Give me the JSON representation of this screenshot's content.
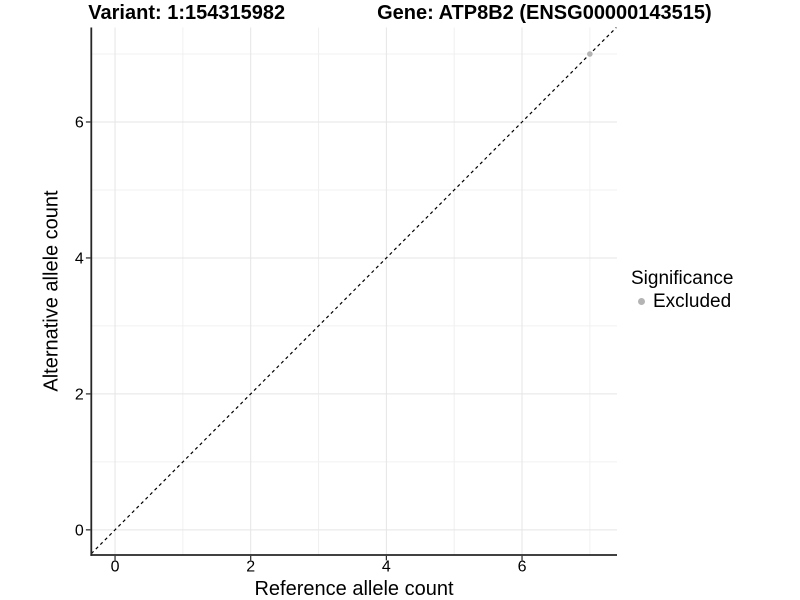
{
  "title": {
    "variant": "Variant: 1:154315982",
    "gene": "Gene: ATP8B2 (ENSG00000143515)"
  },
  "chart_data": {
    "type": "scatter",
    "title": "Variant: 1:154315982   Gene: ATP8B2 (ENSG00000143515)",
    "xlabel": "Reference allele count",
    "ylabel": "Alternative allele count",
    "xlim": [
      -0.35,
      7.4
    ],
    "ylim": [
      -0.37,
      7.39
    ],
    "x_ticks": [
      0,
      2,
      4,
      6
    ],
    "y_ticks": [
      0,
      2,
      4,
      6
    ],
    "x_minor_gridlines": [
      1,
      3,
      5,
      7
    ],
    "y_minor_gridlines": [
      1,
      3,
      5,
      7
    ],
    "grid": true,
    "reference_line": {
      "type": "identity",
      "style": "dashed",
      "color": "#000000"
    },
    "series": [
      {
        "name": "Excluded",
        "color": "#b4b4b4",
        "points": [
          {
            "x": 7,
            "y": 7
          }
        ]
      }
    ],
    "legend": {
      "title": "Significance",
      "position": "right",
      "entries": [
        {
          "label": "Excluded",
          "color": "#b4b4b4"
        }
      ]
    }
  },
  "colors": {
    "axis_line": "#262626",
    "major_gridline": "#e5e5e5",
    "minor_gridline": "#f0f0f0",
    "point_gray": "#b4b4b4",
    "reference_line": "#000000",
    "background": "#ffffff"
  }
}
